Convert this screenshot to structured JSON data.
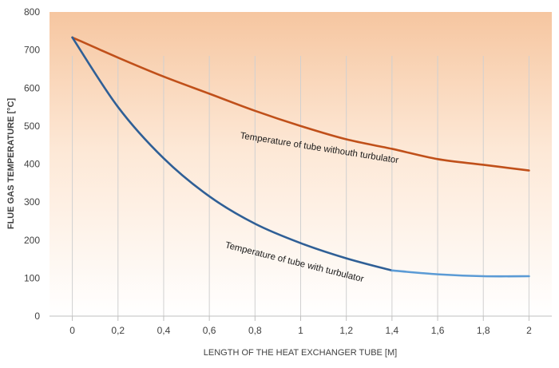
{
  "chart_data": {
    "type": "line",
    "title": "",
    "xlabel": "LENGTH OF THE HEAT EXCHANGER TUBE [M]",
    "ylabel": "FLUE GAS TEMPERATURE [°C]",
    "xlim": [
      -0.1,
      2.1
    ],
    "ylim": [
      0,
      800
    ],
    "x_ticks": [
      0,
      0.2,
      0.4,
      0.6,
      0.8,
      1,
      1.2,
      1.4,
      1.6,
      1.8,
      2
    ],
    "x_tick_labels": [
      "0",
      "0,2",
      "0,4",
      "0,6",
      "0,8",
      "1",
      "1,2",
      "1,4",
      "1,6",
      "1,8",
      "2"
    ],
    "y_ticks": [
      0,
      100,
      200,
      300,
      400,
      500,
      600,
      700,
      800
    ],
    "y_tick_labels": [
      "0",
      "100",
      "200",
      "300",
      "400",
      "500",
      "600",
      "700",
      "800"
    ],
    "grid": "vertical",
    "background_gradient": [
      "#f6c6a0",
      "#fde8d6",
      "#ffffff"
    ],
    "series": [
      {
        "name": "without-turbulator",
        "label": "Temperature of tube withouth turbulator",
        "color": "#c0501a",
        "x": [
          0,
          0.2,
          0.4,
          0.6,
          0.8,
          1,
          1.2,
          1.4,
          1.6,
          1.8,
          2
        ],
        "values": [
          733,
          680,
          630,
          585,
          540,
          500,
          465,
          440,
          413,
          398,
          383
        ]
      },
      {
        "name": "with-turbulator",
        "label": "Temperature of tube with turbulator",
        "color": "#2f5f96",
        "color_tail": "#5b9bd5",
        "tail_from_x": 1.4,
        "x": [
          0,
          0.2,
          0.4,
          0.6,
          0.8,
          1,
          1.2,
          1.4,
          1.6,
          1.8,
          2
        ],
        "values": [
          733,
          550,
          415,
          315,
          243,
          192,
          152,
          120,
          110,
          105,
          105
        ]
      }
    ],
    "annotations": [
      {
        "text": "Temperature of tube withouth turbulator",
        "x": 1.08,
        "y": 435,
        "angle": 9
      },
      {
        "text": "Temperature of tube with turbulator",
        "x": 0.97,
        "y": 135,
        "angle": 14
      }
    ]
  }
}
